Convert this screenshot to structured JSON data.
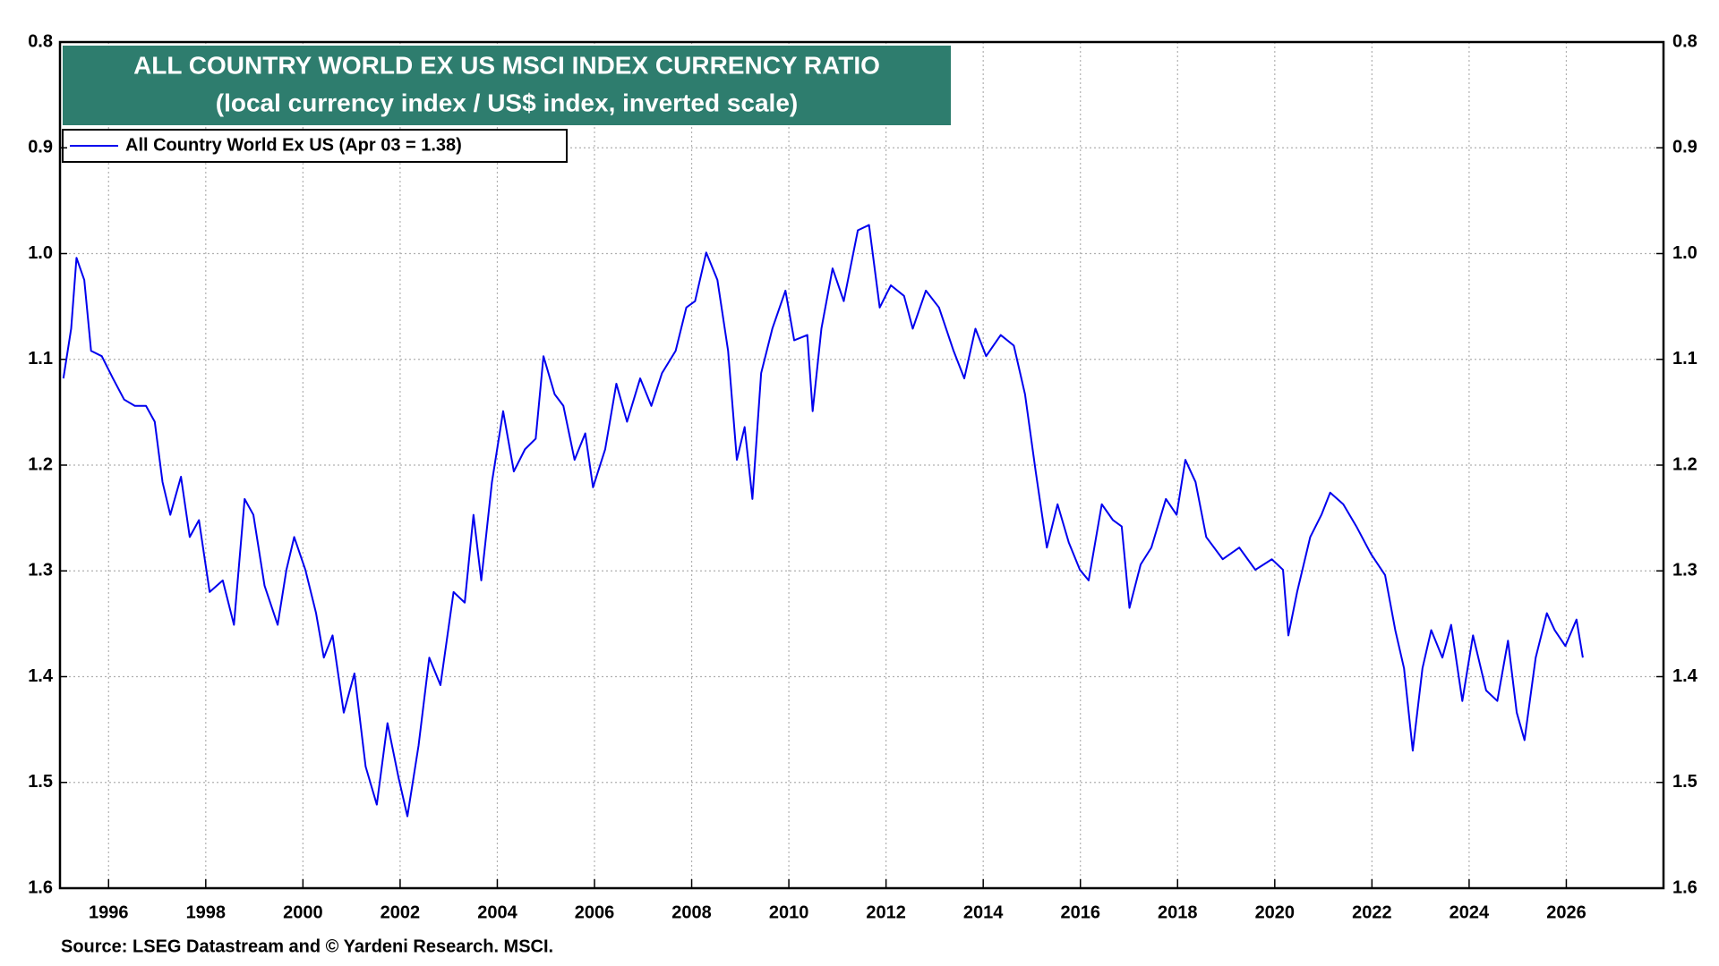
{
  "chart_data": {
    "type": "line",
    "title": "ALL COUNTRY WORLD EX US MSCI INDEX CURRENCY RATIO",
    "subtitle": "(local currency index / US$ index, inverted scale)",
    "source": "Source: LSEG Datastream and © Yardeni Research. MSCI.",
    "xlim": [
      1995,
      2028
    ],
    "xticks": [
      1996,
      1998,
      2000,
      2002,
      2004,
      2006,
      2008,
      2010,
      2012,
      2014,
      2016,
      2018,
      2020,
      2022,
      2024,
      2026
    ],
    "ylim": [
      0.8,
      1.6
    ],
    "inverted": true,
    "yticks": [
      0.8,
      0.9,
      {
        "value": 1,
        "label": "1.0"
      },
      1.1,
      1.2,
      1.3,
      1.4,
      1.5,
      1.6
    ],
    "grid": true,
    "legend": "top-left",
    "x": [
      1995.07,
      1995.23,
      1995.34,
      1995.5,
      1995.64,
      1995.86,
      1996.09,
      1996.32,
      1996.54,
      1996.77,
      1996.95,
      1997.11,
      1997.27,
      1997.49,
      1997.67,
      1997.86,
      1998.08,
      1998.35,
      1998.58,
      1998.8,
      1998.98,
      1999.21,
      1999.48,
      1999.66,
      1999.82,
      2000.05,
      2000.27,
      2000.43,
      2000.61,
      2000.84,
      2001.06,
      2001.29,
      2001.52,
      2001.74,
      2001.97,
      2002.15,
      2002.38,
      2002.6,
      2002.83,
      2003.1,
      2003.33,
      2003.51,
      2003.67,
      2003.89,
      2004.12,
      2004.34,
      2004.57,
      2004.79,
      2004.95,
      2005.18,
      2005.36,
      2005.59,
      2005.81,
      2005.97,
      2006.22,
      2006.45,
      2006.67,
      2006.94,
      2007.17,
      2007.39,
      2007.67,
      2007.89,
      2008.07,
      2008.3,
      2008.53,
      2008.75,
      2008.93,
      2009.09,
      2009.25,
      2009.43,
      2009.66,
      2009.93,
      2010.11,
      2010.38,
      2010.49,
      2010.67,
      2010.9,
      2011.13,
      2011.42,
      2011.65,
      2011.87,
      2012.1,
      2012.37,
      2012.55,
      2012.82,
      2013.09,
      2013.39,
      2013.61,
      2013.84,
      2014.06,
      2014.36,
      2014.63,
      2014.86,
      2015.08,
      2015.31,
      2015.53,
      2015.76,
      2015.99,
      2016.17,
      2016.44,
      2016.67,
      2016.85,
      2017.01,
      2017.24,
      2017.46,
      2017.76,
      2017.98,
      2018.16,
      2018.37,
      2018.59,
      2018.93,
      2019.27,
      2019.6,
      2019.94,
      2020.17,
      2020.28,
      2020.46,
      2020.73,
      2020.96,
      2021.14,
      2021.41,
      2021.68,
      2021.98,
      2022.27,
      2022.48,
      2022.66,
      2022.84,
      2023.04,
      2023.22,
      2023.45,
      2023.63,
      2023.86,
      2024.08,
      2024.35,
      2024.58,
      2024.8,
      2024.98,
      2025.14,
      2025.37,
      2025.6,
      2025.76,
      2025.98,
      2026.21,
      2026.34
    ],
    "series": [
      {
        "name": "All Country World Ex US (Apr 03 = 1.38)",
        "color": "#0000ee",
        "values": [
          1.118,
          1.071,
          1.004,
          1.025,
          1.092,
          1.097,
          1.118,
          1.138,
          1.144,
          1.144,
          1.159,
          1.216,
          1.247,
          1.211,
          1.268,
          1.252,
          1.32,
          1.309,
          1.351,
          1.232,
          1.247,
          1.314,
          1.351,
          1.299,
          1.268,
          1.299,
          1.34,
          1.382,
          1.361,
          1.434,
          1.397,
          1.485,
          1.521,
          1.444,
          1.496,
          1.532,
          1.465,
          1.382,
          1.408,
          1.32,
          1.33,
          1.247,
          1.309,
          1.216,
          1.149,
          1.206,
          1.185,
          1.175,
          1.097,
          1.133,
          1.144,
          1.195,
          1.17,
          1.221,
          1.185,
          1.123,
          1.159,
          1.118,
          1.144,
          1.113,
          1.092,
          1.051,
          1.045,
          0.999,
          1.025,
          1.092,
          1.195,
          1.164,
          1.232,
          1.113,
          1.071,
          1.035,
          1.082,
          1.077,
          1.149,
          1.071,
          1.014,
          1.045,
          0.978,
          0.973,
          1.051,
          1.03,
          1.04,
          1.071,
          1.035,
          1.051,
          1.092,
          1.118,
          1.071,
          1.097,
          1.077,
          1.087,
          1.133,
          1.206,
          1.278,
          1.237,
          1.273,
          1.299,
          1.309,
          1.237,
          1.252,
          1.258,
          1.335,
          1.294,
          1.278,
          1.232,
          1.247,
          1.195,
          1.216,
          1.268,
          1.289,
          1.278,
          1.299,
          1.289,
          1.299,
          1.361,
          1.32,
          1.268,
          1.247,
          1.226,
          1.237,
          1.258,
          1.284,
          1.304,
          1.356,
          1.392,
          1.47,
          1.392,
          1.356,
          1.382,
          1.351,
          1.423,
          1.361,
          1.413,
          1.423,
          1.366,
          1.434,
          1.46,
          1.382,
          1.34,
          1.356,
          1.371,
          1.346,
          1.382
        ]
      }
    ]
  }
}
